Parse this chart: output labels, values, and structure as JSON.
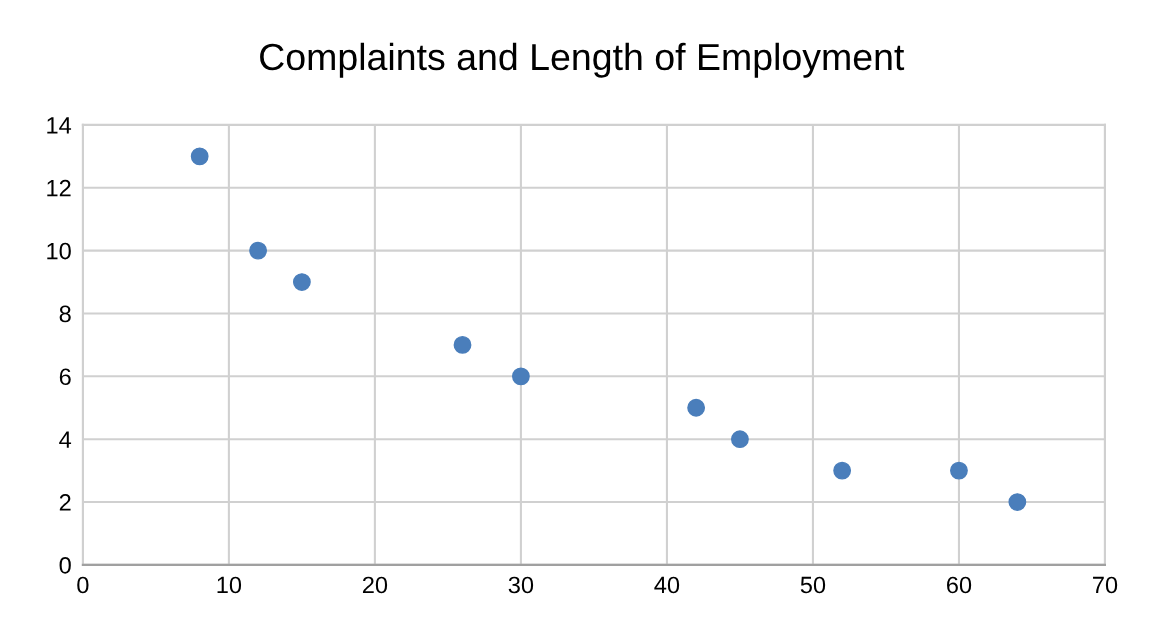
{
  "chart_data": {
    "type": "scatter",
    "title": "Complaints and Length of Employment",
    "x": [
      8,
      12,
      15,
      26,
      30,
      42,
      45,
      52,
      60,
      64
    ],
    "series": [
      {
        "color": "#4a7ebb",
        "values": [
          13,
          10,
          9,
          7,
          6,
          5,
          4,
          3,
          3,
          2
        ]
      }
    ],
    "xlim": [
      0,
      70
    ],
    "xticks": [
      0,
      10,
      20,
      30,
      40,
      50,
      60,
      70
    ],
    "ylim": [
      0,
      14
    ],
    "yticks": [
      0,
      2,
      4,
      6,
      8,
      10,
      12,
      14
    ],
    "grid": true,
    "marker": "circle"
  }
}
